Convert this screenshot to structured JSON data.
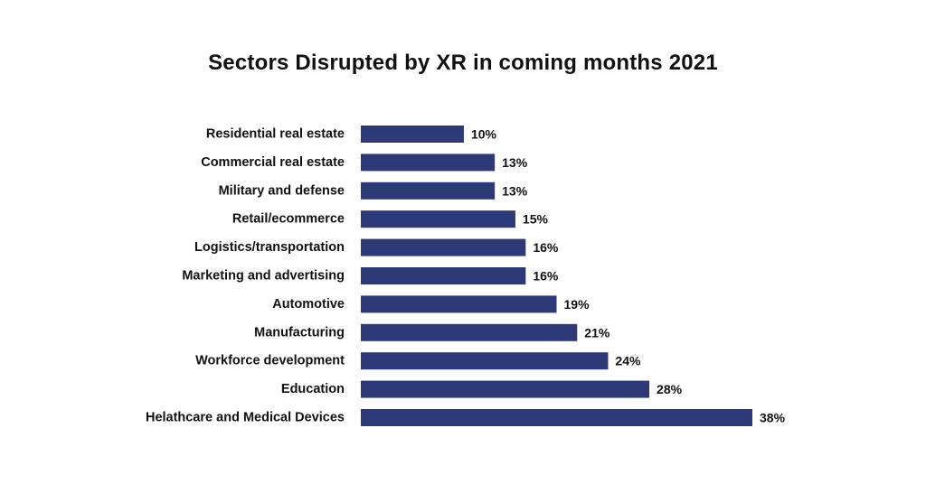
{
  "chart_data": {
    "type": "bar",
    "orientation": "horizontal",
    "title": "Sectors Disrupted by XR in coming months 2021",
    "xlabel": "",
    "ylabel": "",
    "value_suffix": "%",
    "xlim": [
      0,
      38
    ],
    "grid": false,
    "legend": "none",
    "bar_color": "#2E3A78",
    "categories": [
      "Residential real estate",
      "Commercial real estate",
      "Military and defense",
      "Retail/ecommerce",
      "Logistics/transportation",
      "Marketing and advertising",
      "Automotive",
      "Manufacturing",
      "Workforce development",
      "Education",
      "Helathcare and Medical Devices"
    ],
    "values": [
      10,
      13,
      13,
      15,
      16,
      16,
      19,
      21,
      24,
      28,
      38
    ]
  }
}
